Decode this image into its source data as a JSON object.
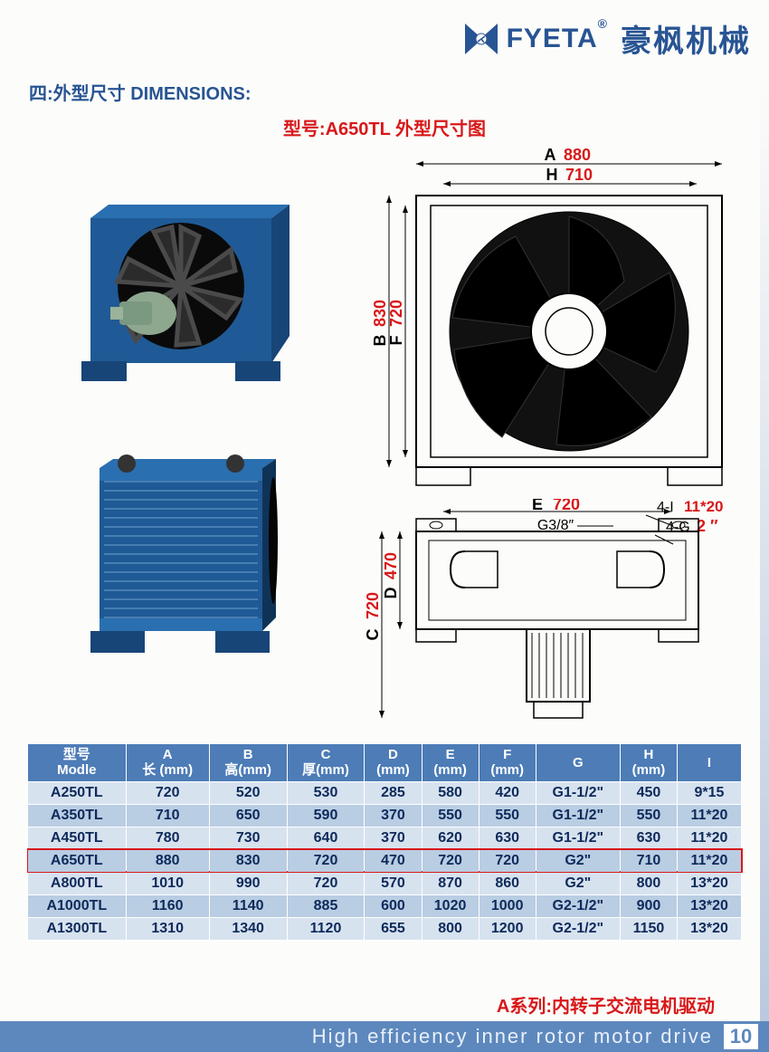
{
  "brand": {
    "en": "FYETA",
    "reg": "®",
    "cn": "豪枫机械"
  },
  "section_title": "四:外型尺寸 DIMENSIONS:",
  "sub_title": "型号:A650TL 外型尺寸图",
  "dimensions": {
    "A": {
      "letter": "A",
      "val": "880"
    },
    "H": {
      "letter": "H",
      "val": "710"
    },
    "B": {
      "letter": "B",
      "val": "830"
    },
    "F": {
      "letter": "F",
      "val": "720"
    },
    "E": {
      "letter": "E",
      "val": "720"
    },
    "C": {
      "letter": "C",
      "val": "720"
    },
    "D": {
      "letter": "D",
      "val": "470"
    },
    "G38": "G3/8″",
    "fourI": {
      "label": "4-I",
      "val": "11*20"
    },
    "fourG": {
      "label": "4-G",
      "val": "2 ″"
    }
  },
  "table": {
    "header_bg": "#4d7cb7",
    "row_odd_bg": "#d7e2ef",
    "row_even_bg": "#b9cde3",
    "highlight_color": "#d8181a",
    "columns": [
      {
        "l1": "型号",
        "l2": "Modle"
      },
      {
        "l1": "A",
        "l2": "长 (mm)"
      },
      {
        "l1": "B",
        "l2": "高(mm)"
      },
      {
        "l1": "C",
        "l2": "厚(mm)"
      },
      {
        "l1": "D",
        "l2": "(mm)"
      },
      {
        "l1": "E",
        "l2": "(mm)"
      },
      {
        "l1": "F",
        "l2": "(mm)"
      },
      {
        "l1": "G",
        "l2": ""
      },
      {
        "l1": "H",
        "l2": "(mm)"
      },
      {
        "l1": "I",
        "l2": ""
      }
    ],
    "highlight_row_index": 3,
    "rows": [
      [
        "A250TL",
        "720",
        "520",
        "530",
        "285",
        "580",
        "420",
        "G1-1/2\"",
        "450",
        "9*15"
      ],
      [
        "A350TL",
        "710",
        "650",
        "590",
        "370",
        "550",
        "550",
        "G1-1/2\"",
        "550",
        "11*20"
      ],
      [
        "A450TL",
        "780",
        "730",
        "640",
        "370",
        "620",
        "630",
        "G1-1/2\"",
        "630",
        "11*20"
      ],
      [
        "A650TL",
        "880",
        "830",
        "720",
        "470",
        "720",
        "720",
        "G2\"",
        "710",
        "11*20"
      ],
      [
        "A800TL",
        "1010",
        "990",
        "720",
        "570",
        "870",
        "860",
        "G2\"",
        "800",
        "13*20"
      ],
      [
        "A1000TL",
        "1160",
        "1140",
        "885",
        "600",
        "1020",
        "1000",
        "G2-1/2\"",
        "900",
        "13*20"
      ],
      [
        "A1300TL",
        "1310",
        "1340",
        "1120",
        "655",
        "800",
        "1200",
        "G2-1/2\"",
        "1150",
        "13*20"
      ]
    ]
  },
  "footer": {
    "red": "A系列:内转子交流电机驱动",
    "blue": "High efficiency inner rotor motor drive",
    "page": "10"
  },
  "colors": {
    "brand_blue": "#285494",
    "red": "#d8181a",
    "bar_blue": "#5d88bd"
  }
}
